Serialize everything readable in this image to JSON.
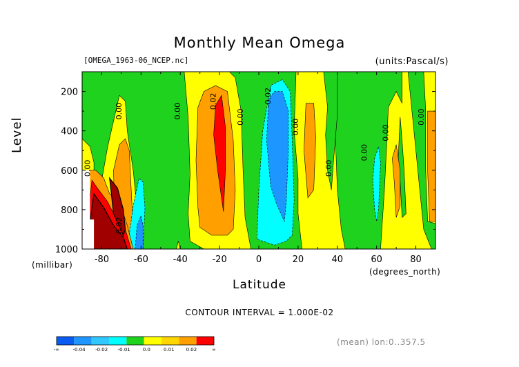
{
  "chart_data": {
    "type": "heatmap",
    "title": "Monthly Mean Omega",
    "file_label": "[OMEGA_1963-06_NCEP.nc]",
    "units_label": "(units:Pascal/s)",
    "xlabel": "Latitude",
    "ylabel": "Level",
    "y_unit_label": "(millibar)",
    "x_unit_label": "(degrees_north)",
    "xlim": [
      -90,
      90
    ],
    "ylim": [
      1000,
      100
    ],
    "x_ticks": [
      -80,
      -60,
      -40,
      -20,
      0,
      20,
      40,
      60,
      80
    ],
    "x_tick_labels": [
      "-80",
      "-60",
      "-40",
      "-20",
      "0",
      "20",
      "40",
      "60",
      "80"
    ],
    "y_ticks": [
      200,
      400,
      600,
      800,
      1000
    ],
    "y_tick_labels": [
      "200",
      "400",
      "600",
      "800",
      "1000"
    ],
    "contour_interval_text": "CONTOUR INTERVAL = 1.000E-02",
    "mean_text": "(mean) lon:0..357.5",
    "contour_labels": [
      {
        "lat": -70,
        "lev": 300,
        "text": "0.00"
      },
      {
        "lat": -40,
        "lev": 300,
        "text": "0.00"
      },
      {
        "lat": -22,
        "lev": 250,
        "text": "0.02"
      },
      {
        "lat": -8,
        "lev": 330,
        "text": "0.00"
      },
      {
        "lat": 6,
        "lev": 230,
        "text": "-0.02"
      },
      {
        "lat": 20,
        "lev": 380,
        "text": "0.00"
      },
      {
        "lat": 37,
        "lev": 590,
        "text": "0.00"
      },
      {
        "lat": 55,
        "lev": 510,
        "text": "0.00"
      },
      {
        "lat": 66,
        "lev": 410,
        "text": "0.00"
      },
      {
        "lat": 84,
        "lev": 330,
        "text": "0.00"
      },
      {
        "lat": -86,
        "lev": 590,
        "text": "0.00"
      },
      {
        "lat": -70,
        "lev": 880,
        "text": "0.02"
      }
    ],
    "legend": {
      "colors": [
        "#0a5cf0",
        "#1e96ff",
        "#30c8ff",
        "#00ffff",
        "#1ed21e",
        "#ffff00",
        "#ffd600",
        "#ffa000",
        "#ff0000"
      ],
      "tick_labels": [
        "-∞",
        "-0.04",
        "-0.02",
        "-0.01",
        "0.0",
        "0.01",
        "0.02",
        "∞"
      ]
    },
    "regions": [
      {
        "level": "green",
        "polygon": [
          [
            -90,
            100
          ],
          [
            90,
            100
          ],
          [
            90,
            1000
          ],
          [
            -90,
            1000
          ]
        ]
      },
      {
        "level": "yellow",
        "polygon": [
          [
            -90,
            440
          ],
          [
            -86,
            480
          ],
          [
            -84,
            560
          ],
          [
            -84,
            700
          ],
          [
            -86,
            760
          ],
          [
            -90,
            760
          ]
        ]
      },
      {
        "level": "yellow",
        "polygon": [
          [
            -80,
            650
          ],
          [
            -77,
            480
          ],
          [
            -74,
            350
          ],
          [
            -71,
            220
          ],
          [
            -68,
            250
          ],
          [
            -67,
            400
          ],
          [
            -64,
            600
          ],
          [
            -62,
            800
          ],
          [
            -61,
            1000
          ],
          [
            -80,
            1000
          ]
        ]
      },
      {
        "level": "orange",
        "polygon": [
          [
            -74,
            600
          ],
          [
            -71,
            470
          ],
          [
            -68,
            440
          ],
          [
            -66,
            500
          ],
          [
            -65,
            700
          ],
          [
            -64,
            900
          ],
          [
            -64,
            1000
          ],
          [
            -73,
            1000
          ]
        ]
      },
      {
        "level": "cyan",
        "polygon": [
          [
            -67,
            1000
          ],
          [
            -64,
            780
          ],
          [
            -61,
            640
          ],
          [
            -59,
            660
          ],
          [
            -58,
            790
          ],
          [
            -59,
            1000
          ]
        ]
      },
      {
        "level": "lightblue",
        "polygon": [
          [
            -63,
            1000
          ],
          [
            -62,
            880
          ],
          [
            -60,
            830
          ],
          [
            -59,
            880
          ],
          [
            -59,
            1000
          ]
        ]
      },
      {
        "level": "yellow",
        "polygon": [
          [
            -38,
            100
          ],
          [
            -36,
            330
          ],
          [
            -35,
            620
          ],
          [
            -36,
            820
          ],
          [
            -35,
            960
          ],
          [
            -28,
            1000
          ],
          [
            -4,
            1000
          ],
          [
            -7,
            840
          ],
          [
            -8,
            600
          ],
          [
            -9,
            300
          ],
          [
            -12,
            130
          ],
          [
            -15,
            100
          ]
        ]
      },
      {
        "level": "orange",
        "polygon": [
          [
            -31,
            280
          ],
          [
            -32,
            550
          ],
          [
            -31,
            790
          ],
          [
            -30,
            890
          ],
          [
            -24,
            930
          ],
          [
            -16,
            930
          ],
          [
            -13,
            900
          ],
          [
            -12,
            700
          ],
          [
            -13,
            450
          ],
          [
            -16,
            200
          ],
          [
            -22,
            170
          ],
          [
            -28,
            200
          ]
        ]
      },
      {
        "level": "red",
        "polygon": [
          [
            -22,
            270
          ],
          [
            -23,
            420
          ],
          [
            -21,
            600
          ],
          [
            -18,
            810
          ],
          [
            -17,
            600
          ],
          [
            -17,
            380
          ],
          [
            -19,
            220
          ]
        ]
      },
      {
        "level": "cyan",
        "polygon": [
          [
            -1,
            950
          ],
          [
            0,
            700
          ],
          [
            2,
            400
          ],
          [
            6,
            170
          ],
          [
            12,
            140
          ],
          [
            16,
            200
          ],
          [
            17,
            450
          ],
          [
            18,
            750
          ],
          [
            17,
            930
          ],
          [
            14,
            960
          ],
          [
            8,
            980
          ]
        ]
      },
      {
        "level": "lightblue",
        "polygon": [
          [
            5,
            240
          ],
          [
            4,
            450
          ],
          [
            6,
            680
          ],
          [
            9,
            770
          ],
          [
            13,
            860
          ],
          [
            14,
            760
          ],
          [
            15,
            500
          ],
          [
            15,
            300
          ],
          [
            12,
            200
          ],
          [
            8,
            200
          ]
        ]
      },
      {
        "level": "yellow",
        "polygon": [
          [
            19,
            100
          ],
          [
            18,
            400
          ],
          [
            20,
            640
          ],
          [
            20,
            820
          ],
          [
            22,
            1000
          ],
          [
            44,
            1000
          ],
          [
            42,
            900
          ],
          [
            40,
            700
          ],
          [
            39,
            430
          ],
          [
            38,
            200
          ],
          [
            37,
            100
          ]
        ]
      },
      {
        "level": "orange",
        "polygon": [
          [
            24,
            260
          ],
          [
            23,
            500
          ],
          [
            25,
            740
          ],
          [
            28,
            700
          ],
          [
            29,
            430
          ],
          [
            28,
            260
          ]
        ]
      },
      {
        "level": "green",
        "polygon": [
          [
            33,
            100
          ],
          [
            35,
            280
          ],
          [
            34,
            420
          ],
          [
            35,
            600
          ],
          [
            37,
            700
          ],
          [
            38,
            560
          ],
          [
            40,
            320
          ],
          [
            40,
            100
          ]
        ]
      },
      {
        "level": "cyan",
        "polygon": [
          [
            58,
            650
          ],
          [
            59,
            540
          ],
          [
            61,
            480
          ],
          [
            62,
            560
          ],
          [
            61,
            800
          ],
          [
            60,
            860
          ],
          [
            59,
            800
          ]
        ]
      },
      {
        "level": "yellow",
        "polygon": [
          [
            62,
            1000
          ],
          [
            64,
            700
          ],
          [
            65,
            500
          ],
          [
            66,
            280
          ],
          [
            70,
            200
          ],
          [
            73,
            260
          ],
          [
            73,
            100
          ],
          [
            90,
            100
          ],
          [
            90,
            1000
          ]
        ]
      },
      {
        "level": "green",
        "polygon": [
          [
            71,
            540
          ],
          [
            72,
            660
          ],
          [
            73,
            840
          ],
          [
            75,
            820
          ],
          [
            74,
            600
          ],
          [
            73,
            450
          ],
          [
            72,
            330
          ]
        ]
      },
      {
        "level": "orange",
        "polygon": [
          [
            68,
            540
          ],
          [
            69,
            660
          ],
          [
            70,
            840
          ],
          [
            72,
            780
          ],
          [
            72,
            600
          ],
          [
            70,
            470
          ]
        ]
      },
      {
        "level": "orange",
        "polygon": [
          [
            86,
            300
          ],
          [
            86,
            600
          ],
          [
            87,
            860
          ],
          [
            90,
            860
          ],
          [
            90,
            300
          ]
        ]
      },
      {
        "level": "green",
        "polygon": [
          [
            76,
            100
          ],
          [
            78,
            300
          ],
          [
            80,
            500
          ],
          [
            82,
            700
          ],
          [
            84,
            900
          ],
          [
            88,
            1000
          ],
          [
            90,
            1000
          ],
          [
            90,
            870
          ],
          [
            86,
            860
          ],
          [
            85,
            600
          ],
          [
            85,
            300
          ],
          [
            84,
            100
          ]
        ]
      },
      {
        "level": "yellow",
        "polygon": [
          [
            -42,
            1000
          ],
          [
            -41,
            960
          ],
          [
            -40,
            1000
          ]
        ]
      },
      {
        "level": "orange",
        "polygon": [
          [
            -86,
            600
          ],
          [
            -83,
            600
          ],
          [
            -79,
            640
          ],
          [
            -76,
            720
          ],
          [
            -71,
            760
          ],
          [
            -67,
            880
          ],
          [
            -64,
            1000
          ],
          [
            -90,
            1000
          ]
        ]
      },
      {
        "level": "red",
        "polygon": [
          [
            -85,
            650
          ],
          [
            -83,
            680
          ],
          [
            -77,
            760
          ],
          [
            -73,
            840
          ],
          [
            -68,
            900
          ],
          [
            -65,
            1000
          ],
          [
            -89,
            1000
          ]
        ]
      },
      {
        "level": "darkred",
        "polygon": [
          [
            -84,
            720
          ],
          [
            -79,
            790
          ],
          [
            -74,
            880
          ],
          [
            -69,
            940
          ],
          [
            -67,
            1000
          ],
          [
            -88,
            1000
          ]
        ]
      },
      {
        "level": "darkred",
        "polygon": [
          [
            -76,
            640
          ],
          [
            -72,
            690
          ],
          [
            -69,
            800
          ],
          [
            -68,
            900
          ],
          [
            -69,
            930
          ],
          [
            -74,
            820
          ]
        ]
      },
      {
        "level": "white",
        "polygon": [
          [
            -90,
            600
          ],
          [
            -86,
            600
          ],
          [
            -86,
            850
          ],
          [
            -84,
            850
          ],
          [
            -84,
            1000
          ],
          [
            -90,
            1000
          ]
        ]
      }
    ]
  }
}
